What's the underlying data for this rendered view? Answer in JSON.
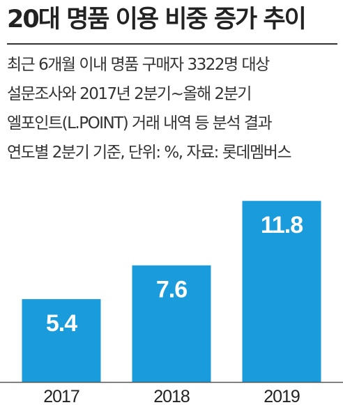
{
  "title": "20대 명품 이용 비중 증가 추이",
  "notes": [
    "최근 6개월 이내 명품 구매자 3322명 대상",
    "설문조사와 2017년 2분기~올해 2분기",
    "엘포인트(L.POINT) 거래 내역 등 분석 결과",
    "연도별 2분기 기준, 단위: %, 자료: 롯데멤버스"
  ],
  "colors": {
    "bar": "#1a9bdb",
    "label": "#ffffff",
    "axis": "#555555",
    "text": "#222222"
  },
  "chart_data": {
    "type": "bar",
    "title": "20대 명품 이용 비중 증가 추이",
    "categories": [
      "2017",
      "2018",
      "2019"
    ],
    "values": [
      5.4,
      7.6,
      11.8
    ],
    "value_labels": [
      "5.4",
      "7.6",
      "11.8"
    ],
    "ylim": [
      0,
      12.9
    ],
    "xlabel": "",
    "ylabel": "",
    "grid": false,
    "legend": "none"
  }
}
